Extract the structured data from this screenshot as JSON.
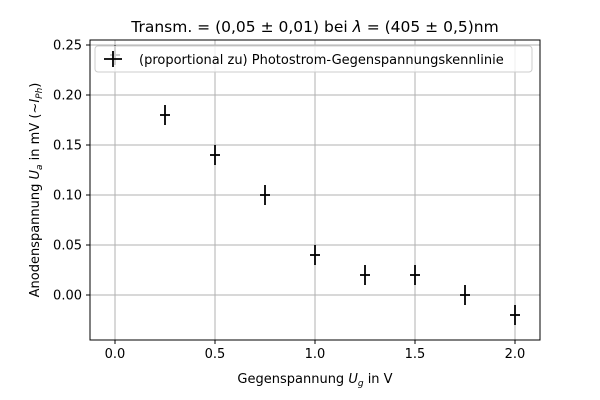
{
  "chart_data": {
    "type": "scatter",
    "title": "Transm. = (0,05 ± 0,01) bei λ = (405 ± 0,5)nm",
    "xlabel": "Gegenspannung U_g in V",
    "ylabel": "Anodenspannung U_a in mV (~I_Ph)",
    "xlim": [
      -0.125,
      2.125
    ],
    "ylim": [
      -0.045,
      0.255
    ],
    "grid": true,
    "legend_position": "top-left",
    "x_ticks": [
      "0.0",
      "0.5",
      "1.0",
      "1.5",
      "2.0"
    ],
    "y_ticks": [
      "0.00",
      "0.05",
      "0.10",
      "0.15",
      "0.20",
      "0.25"
    ],
    "series": [
      {
        "name": "(proportional zu) Photostrom-Gegenspannungskennlinie",
        "color": "#000000",
        "points": [
          {
            "x": 0.0,
            "y": 0.24,
            "x_err": 0.025,
            "y_err": 0.01
          },
          {
            "x": 0.25,
            "y": 0.18,
            "x_err": 0.025,
            "y_err": 0.01
          },
          {
            "x": 0.5,
            "y": 0.14,
            "x_err": 0.025,
            "y_err": 0.01
          },
          {
            "x": 0.75,
            "y": 0.1,
            "x_err": 0.025,
            "y_err": 0.01
          },
          {
            "x": 1.0,
            "y": 0.04,
            "x_err": 0.025,
            "y_err": 0.01
          },
          {
            "x": 1.25,
            "y": 0.02,
            "x_err": 0.025,
            "y_err": 0.01
          },
          {
            "x": 1.5,
            "y": 0.02,
            "x_err": 0.025,
            "y_err": 0.01
          },
          {
            "x": 1.75,
            "y": 0.0,
            "x_err": 0.025,
            "y_err": 0.01
          },
          {
            "x": 2.0,
            "y": -0.02,
            "x_err": 0.025,
            "y_err": 0.01
          }
        ]
      }
    ]
  }
}
